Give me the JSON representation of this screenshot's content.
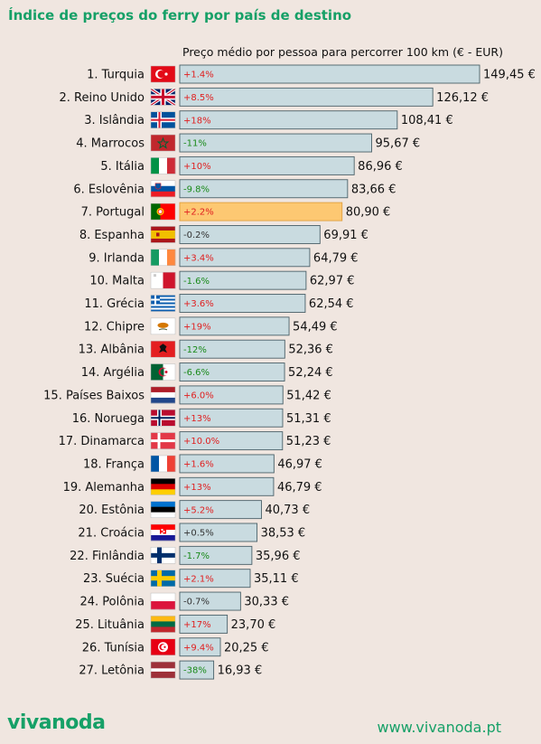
{
  "chart_data": {
    "type": "bar",
    "orientation": "horizontal",
    "title": "Índice de preços do ferry por país de destino",
    "subtitle": "Preço médio por pessoa para percorrer 100 km (€ - EUR)",
    "categories": [
      "1. Turquia",
      "2. Reino Unido",
      "3. Islândia",
      "4. Marrocos",
      "5. Itália",
      "6. Eslovênia",
      "7. Portugal",
      "8. Espanha",
      "9. Irlanda",
      "10. Malta",
      "11. Grécia",
      "12. Chipre",
      "13. Albânia",
      "14. Argélia",
      "15. Países Baixos",
      "16. Noruega",
      "17. Dinamarca",
      "18. França",
      "19. Alemanha",
      "20. Estônia",
      "21. Croácia",
      "22. Finlândia",
      "23. Suécia",
      "24. Polônia",
      "25. Lituânia",
      "26. Tunísia",
      "27. Letônia"
    ],
    "values": [
      149.45,
      126.12,
      108.41,
      95.67,
      86.96,
      83.66,
      80.9,
      69.91,
      64.79,
      62.97,
      62.54,
      54.49,
      52.36,
      52.24,
      51.42,
      51.31,
      51.23,
      46.97,
      46.79,
      40.73,
      38.53,
      35.96,
      35.11,
      30.33,
      23.7,
      20.25,
      16.93
    ],
    "value_labels": [
      "149,45 €",
      "126,12 €",
      "108,41 €",
      "95,67 €",
      "86,96 €",
      "83,66 €",
      "80,90 €",
      "69,91 €",
      "64,79 €",
      "62,97 €",
      "62,54 €",
      "54,49 €",
      "52,36 €",
      "52,24 €",
      "51,42 €",
      "51,31 €",
      "51,23 €",
      "46,97 €",
      "46,79 €",
      "40,73 €",
      "38,53 €",
      "35,96 €",
      "35,11 €",
      "30,33 €",
      "23,70 €",
      "20,25 €",
      "16,93 €"
    ],
    "changes": [
      "+1.4%",
      "+8.5%",
      "+18%",
      "-11%",
      "+10%",
      "-9.8%",
      "+2.2%",
      "-0.2%",
      "+3.4%",
      "-1.6%",
      "+3.6%",
      "+19%",
      "-12%",
      "-6.6%",
      "+6.0%",
      "+13%",
      "+10.0%",
      "+1.6%",
      "+13%",
      "+5.2%",
      "+0.5%",
      "-1.7%",
      "+2.1%",
      "-0.7%",
      "+17%",
      "+9.4%",
      "-38%"
    ],
    "flags": [
      "tr",
      "gb",
      "is",
      "ma",
      "it",
      "si",
      "pt",
      "es",
      "ie",
      "mt",
      "gr",
      "cy",
      "al",
      "dz",
      "nl",
      "no",
      "dk",
      "fr",
      "de",
      "ee",
      "hr",
      "fi",
      "se",
      "pl",
      "lt",
      "tn",
      "lv"
    ],
    "highlight_index": 6,
    "colors": {
      "bar": "#c9dbe0",
      "bar_border": "#4a6068",
      "highlight": "#fdc872",
      "highlight_border": "#e0a040",
      "increase": "#e02020",
      "decrease": "#1a8a1a",
      "neutral": "#333333"
    }
  },
  "footer": {
    "logo": "vivanoda",
    "url": "www.vivanoda.pt"
  }
}
